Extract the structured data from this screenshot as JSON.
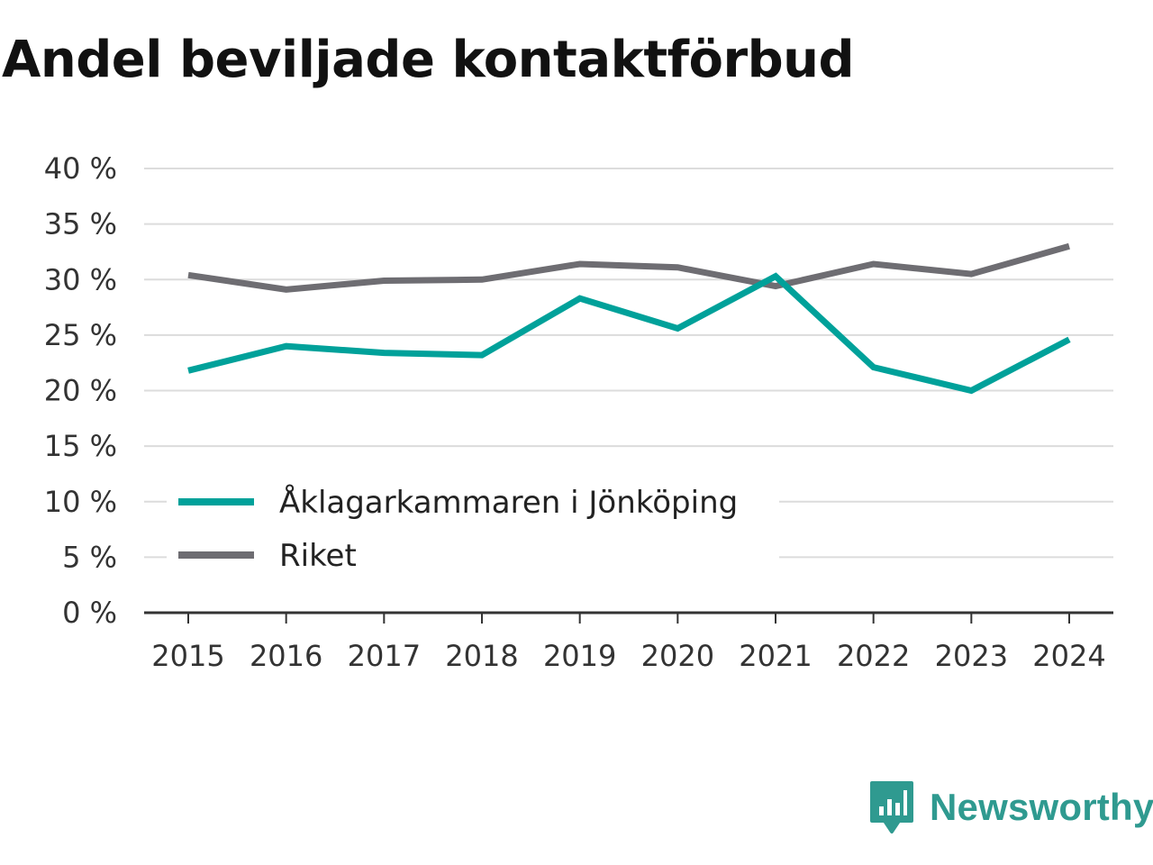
{
  "title": "Andel beviljade kontaktförbud",
  "chart_data": {
    "type": "line",
    "title": "Andel beviljade kontaktförbud",
    "xlabel": "",
    "ylabel": "",
    "categories": [
      "2015",
      "2016",
      "2017",
      "2018",
      "2019",
      "2020",
      "2021",
      "2022",
      "2023",
      "2024"
    ],
    "y_ticks": [
      "0 %",
      "5 %",
      "10 %",
      "15 %",
      "20 %",
      "25 %",
      "30 %",
      "35 %",
      "40 %"
    ],
    "ylim": [
      0,
      40
    ],
    "grid": true,
    "legend_position": "bottom-left inside",
    "series": [
      {
        "name": "Åklagarkammaren i Jönköping",
        "color": "#00a19a",
        "values": [
          21.8,
          24.0,
          23.4,
          23.2,
          28.3,
          25.6,
          30.3,
          22.1,
          20.0,
          24.6
        ]
      },
      {
        "name": "Riket",
        "color": "#6e6d72",
        "values": [
          30.4,
          29.1,
          29.9,
          30.0,
          31.4,
          31.1,
          29.4,
          31.4,
          30.5,
          33.0
        ]
      }
    ]
  },
  "brand": {
    "name": "Newsworthy",
    "color": "#2f9a90"
  }
}
